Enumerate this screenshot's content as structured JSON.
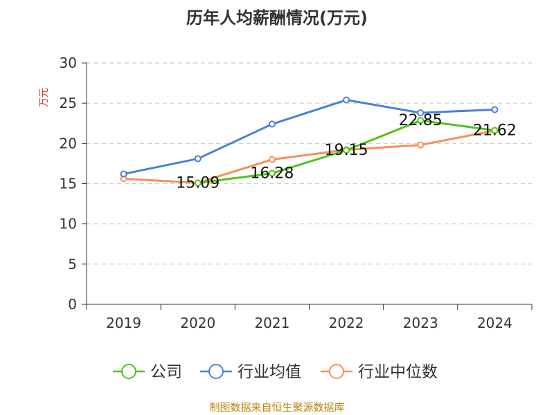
{
  "chart_data": {
    "type": "line",
    "title": "历年人均薪酬情况(万元)",
    "ylabel": "万元",
    "xlabel": "",
    "ylim": [
      0,
      30
    ],
    "yticks": [
      0,
      5,
      10,
      15,
      20,
      25,
      30
    ],
    "categories": [
      "2019",
      "2020",
      "2021",
      "2022",
      "2023",
      "2024"
    ],
    "grid": "horizontal-dashed",
    "legend_position": "bottom",
    "series": [
      {
        "name": "公司",
        "color": "#52c41a",
        "values": [
          null,
          15.09,
          16.28,
          19.15,
          22.85,
          21.62
        ],
        "show_labels": true
      },
      {
        "name": "行业均值",
        "color": "#4a7fdd",
        "values": [
          16.2,
          18.1,
          22.4,
          25.4,
          23.8,
          24.2
        ],
        "show_labels": false
      },
      {
        "name": "行业中位数",
        "color": "#f59056",
        "values": [
          15.6,
          15.1,
          18.0,
          19.2,
          19.8,
          21.6
        ],
        "show_labels": false
      }
    ]
  },
  "source": "制图数据来自恒生聚源数据库"
}
